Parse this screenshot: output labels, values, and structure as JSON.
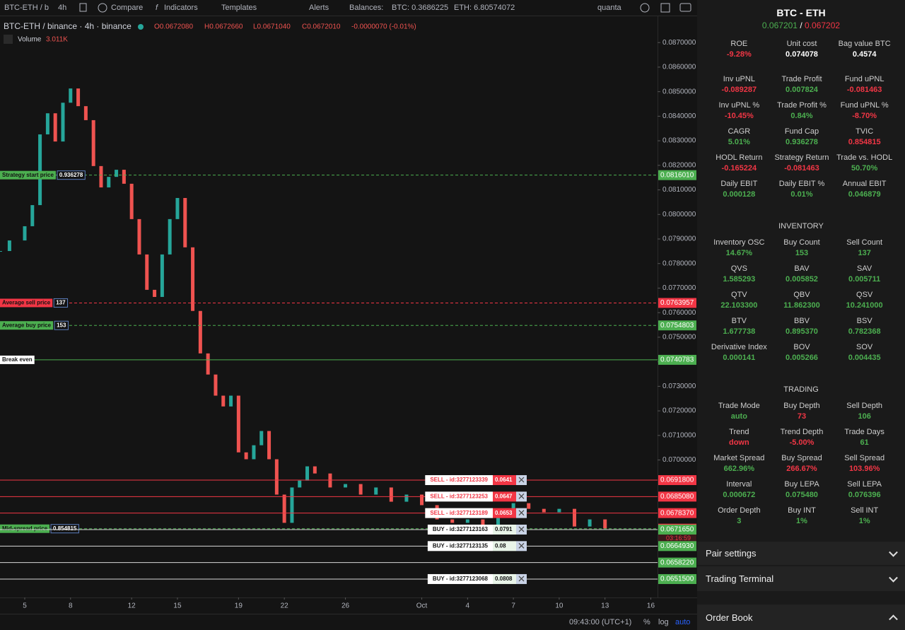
{
  "toolbar": {
    "symbol": "BTC-ETH / b",
    "interval": "4h",
    "compare": "Compare",
    "indicators": "Indicators",
    "templates": "Templates",
    "alerts": "Alerts",
    "balances": "Balances:",
    "btc": "BTC: 0.3686225",
    "eth": "ETH: 6.80574072",
    "user": "quanta"
  },
  "legend": {
    "title": "BTC-ETH / binance · 4h · binance",
    "open": "O0.0672080",
    "high": "H0.0672660",
    "low": "L0.0671040",
    "close": "C0.0672010",
    "change": "-0.0000070 (-0.01%)",
    "volume_label": "Volume",
    "volume": "3.011K"
  },
  "chart_data": {
    "type": "candlestick",
    "up_color": "#26a69a",
    "down_color": "#ef5350",
    "grid": false,
    "x": [
      -1.6,
      -1,
      0,
      0.5,
      1,
      1.5,
      2,
      2.5,
      3,
      3.5,
      4,
      4.5,
      5,
      5.5,
      6,
      6.5,
      7,
      7.5,
      8,
      8.5,
      9,
      9.5,
      10,
      10.5,
      11,
      11.5,
      12,
      12.5,
      13,
      13.5,
      14,
      14.5,
      15,
      15.5,
      16,
      16.5,
      17,
      17.5,
      18,
      18.5,
      19,
      20,
      21,
      22,
      23,
      24,
      25,
      26,
      27,
      28,
      29,
      30,
      31,
      32,
      33,
      34,
      35,
      36,
      37,
      38
    ],
    "values": [
      0.07851,
      0.07894,
      0.07952,
      0.08038,
      0.08326,
      0.08412,
      0.08297,
      0.08455,
      0.08513,
      0.08441,
      0.08384,
      0.08197,
      0.0811,
      0.08153,
      0.08182,
      0.08125,
      0.07981,
      0.07837,
      0.07693,
      0.07664,
      0.07837,
      0.07981,
      0.08067,
      0.07866,
      0.07607,
      0.07434,
      0.07348,
      0.07262,
      0.07218,
      0.07262,
      0.07031,
      0.07003,
      0.0706,
      0.07118,
      0.07003,
      0.06859,
      0.06744,
      0.06888,
      0.06916,
      0.06974,
      0.06945,
      0.06888,
      0.06902,
      0.06859,
      0.06888,
      0.0683,
      0.06859,
      0.06816,
      0.06758,
      0.06744,
      0.06758,
      0.06729,
      0.06801,
      0.06824,
      0.06801,
      0.06787,
      0.06801,
      0.06729,
      0.06758,
      0.06721
    ],
    "xlim": [
      -1.62,
      41.44
    ],
    "ylim": [
      0.0644,
      0.0881
    ],
    "xticks": [
      {
        "value": 0,
        "label": "5"
      },
      {
        "value": 3,
        "label": "8"
      },
      {
        "value": 7,
        "label": "12"
      },
      {
        "value": 10,
        "label": "15"
      },
      {
        "value": 14,
        "label": "19"
      },
      {
        "value": 17,
        "label": "22"
      },
      {
        "value": 21,
        "label": "26"
      },
      {
        "value": 26,
        "label": "Oct"
      },
      {
        "value": 29,
        "label": "4"
      },
      {
        "value": 32,
        "label": "7"
      },
      {
        "value": 35,
        "label": "10"
      },
      {
        "value": 38,
        "label": "13"
      },
      {
        "value": 41,
        "label": "16"
      }
    ],
    "yticks": [
      {
        "value": 0.087,
        "label": "0.0870000"
      },
      {
        "value": 0.086,
        "label": "0.0860000"
      },
      {
        "value": 0.085,
        "label": "0.0850000"
      },
      {
        "value": 0.084,
        "label": "0.0840000"
      },
      {
        "value": 0.083,
        "label": "0.0830000"
      },
      {
        "value": 0.082,
        "label": "0.0820000"
      },
      {
        "value": 0.081,
        "label": "0.0810000"
      },
      {
        "value": 0.08,
        "label": "0.0800000"
      },
      {
        "value": 0.079,
        "label": "0.0790000"
      },
      {
        "value": 0.078,
        "label": "0.0780000"
      },
      {
        "value": 0.077,
        "label": "0.0770000"
      },
      {
        "value": 0.076,
        "label": "0.0760000"
      },
      {
        "value": 0.075,
        "label": "0.0750000"
      },
      {
        "value": 0.074,
        "label": "0.0740000"
      },
      {
        "value": 0.073,
        "label": "0.0730000"
      },
      {
        "value": 0.072,
        "label": "0.0720000"
      },
      {
        "value": 0.071,
        "label": "0.0710000"
      },
      {
        "value": 0.07,
        "label": "0.0700000"
      }
    ],
    "price_lines": [
      {
        "name": "Strategy start price",
        "info": "0.936278",
        "price": {
          "value": 0.081601,
          "label": "0.0816010"
        },
        "color": "#4caf50",
        "dash": true
      },
      {
        "name": "Average sell price",
        "info": "137",
        "price": {
          "value": 0.0763957,
          "label": "0.0763957"
        },
        "color": "#f23645",
        "dash": true
      },
      {
        "name": "Average buy price",
        "info": "153",
        "price": {
          "value": 0.0754803,
          "label": "0.0754803"
        },
        "color": "#4caf50",
        "dash": true
      },
      {
        "name": "Break even",
        "info": null,
        "price": {
          "value": 0.0740783,
          "label": "0.0740783"
        },
        "color": "#4caf50",
        "tag_color": "#ffffff",
        "dash": false
      },
      {
        "name": "Mid-spread price",
        "info": "0.854815",
        "price": {
          "value": 0.067201,
          "label": "0.0672010"
        },
        "color": "#4caf50",
        "axis_color": "#f23645",
        "dash": true,
        "countdown": "03:16:59"
      }
    ],
    "orders": [
      {
        "name": "SELL - id:3277123339",
        "info": "0.0641",
        "price": {
          "value": 0.06918,
          "label": "0.0691800"
        },
        "line_color": "#f23645",
        "tag_color": "#f23645",
        "label_color": "#f23645"
      },
      {
        "name": "SELL - id:3277123253",
        "info": "0.0647",
        "price": {
          "value": 0.068508,
          "label": "0.0685080"
        },
        "line_color": "#f23645",
        "tag_color": "#f23645",
        "label_color": "#f23645"
      },
      {
        "name": "SELL - id:3277123189",
        "info": "0.0653",
        "price": {
          "value": 0.067837,
          "label": "0.0678370"
        },
        "line_color": "#f23645",
        "tag_color": "#f23645",
        "label_color": "#f23645"
      },
      {
        "name": "BUY - id:3277123163",
        "info": "0.0791",
        "price": {
          "value": 0.067165,
          "label": "0.0671650"
        },
        "line_color": "#d8d8d8",
        "tag_color": "#4caf50",
        "label_color": "#131313"
      },
      {
        "name": "BUY - id:3277123135",
        "info": "0.08",
        "price": {
          "value": 0.066493,
          "label": "0.0664930"
        },
        "line_color": "#d8d8d8",
        "tag_color": "#4caf50",
        "label_color": "#131313"
      },
      {
        "name": null,
        "info": null,
        "price": {
          "value": 0.065822,
          "label": "0.0658220"
        },
        "line_color": "#d8d8d8",
        "tag_color": "#4caf50",
        "label_color": "#131313"
      },
      {
        "name": "BUY - id:3277123068",
        "info": "0.0808",
        "price": {
          "value": 0.06515,
          "label": "0.0651500"
        },
        "line_color": "#d8d8d8",
        "tag_color": "#4caf50",
        "label_color": "#131313"
      }
    ]
  },
  "footer": {
    "time": "09:43:00 (UTC+1)",
    "percent": "%",
    "log": "log",
    "auto": "auto"
  },
  "panel": {
    "title": "BTC - ETH",
    "bid": "0.067201",
    "sep": "/",
    "ask": "0.067202",
    "stats": [
      {
        "label": "ROE",
        "value": "-9.28%",
        "color": "red"
      },
      {
        "label": "Unit cost",
        "value": "0.074078",
        "color": "white"
      },
      {
        "label": "Bag value BTC",
        "value": "0.4574",
        "color": "white"
      },
      {
        "label": "Inv uPNL",
        "value": "-0.089287",
        "color": "red"
      },
      {
        "label": "Trade Profit",
        "value": "0.007824",
        "color": "green"
      },
      {
        "label": "Fund uPNL",
        "value": "-0.081463",
        "color": "red"
      },
      {
        "label": "Inv uPNL %",
        "value": "-10.45%",
        "color": "red"
      },
      {
        "label": "Trade Profit %",
        "value": "0.84%",
        "color": "green"
      },
      {
        "label": "Fund uPNL %",
        "value": "-8.70%",
        "color": "red"
      },
      {
        "label": "CAGR",
        "value": "5.01%",
        "color": "green"
      },
      {
        "label": "Fund Cap",
        "value": "0.936278",
        "color": "green"
      },
      {
        "label": "TVIC",
        "value": "0.854815",
        "color": "red"
      },
      {
        "label": "HODL Return",
        "value": "-0.165224",
        "color": "red"
      },
      {
        "label": "Strategy Return",
        "value": "-0.081463",
        "color": "red"
      },
      {
        "label": "Trade vs. HODL",
        "value": "50.70%",
        "color": "green"
      },
      {
        "label": "Daily EBIT",
        "value": "0.000128",
        "color": "green"
      },
      {
        "label": "Daily EBIT %",
        "value": "0.01%",
        "color": "green"
      },
      {
        "label": "Annual EBIT",
        "value": "0.046879",
        "color": "green"
      }
    ],
    "inventory_title": "INVENTORY",
    "inventory": [
      {
        "label": "Inventory OSC",
        "value": "14.67%",
        "color": "green"
      },
      {
        "label": "Buy Count",
        "value": "153",
        "color": "green"
      },
      {
        "label": "Sell Count",
        "value": "137",
        "color": "green"
      },
      {
        "label": "QVS",
        "value": "1.585293",
        "color": "green"
      },
      {
        "label": "BAV",
        "value": "0.005852",
        "color": "green"
      },
      {
        "label": "SAV",
        "value": "0.005711",
        "color": "green"
      },
      {
        "label": "QTV",
        "value": "22.103300",
        "color": "green"
      },
      {
        "label": "QBV",
        "value": "11.862300",
        "color": "green"
      },
      {
        "label": "QSV",
        "value": "10.241000",
        "color": "green"
      },
      {
        "label": "BTV",
        "value": "1.677738",
        "color": "green"
      },
      {
        "label": "BBV",
        "value": "0.895370",
        "color": "green"
      },
      {
        "label": "BSV",
        "value": "0.782368",
        "color": "green"
      },
      {
        "label": "Derivative Index",
        "value": "0.000141",
        "color": "green"
      },
      {
        "label": "BOV",
        "value": "0.005266",
        "color": "green"
      },
      {
        "label": "SOV",
        "value": "0.004435",
        "color": "green"
      }
    ],
    "trading_title": "TRADING",
    "trading": [
      {
        "label": "Trade Mode",
        "value": "auto",
        "color": "green"
      },
      {
        "label": "Buy Depth",
        "value": "73",
        "color": "red"
      },
      {
        "label": "Sell Depth",
        "value": "106",
        "color": "green"
      },
      {
        "label": "Trend",
        "value": "down",
        "color": "red"
      },
      {
        "label": "Trend Depth",
        "value": "-5.00%",
        "color": "red"
      },
      {
        "label": "Trade Days",
        "value": "61",
        "color": "green"
      },
      {
        "label": "Market Spread",
        "value": "662.96%",
        "color": "green"
      },
      {
        "label": "Buy Spread",
        "value": "266.67%",
        "color": "red"
      },
      {
        "label": "Sell Spread",
        "value": "103.96%",
        "color": "red"
      },
      {
        "label": "Interval",
        "value": "0.000672",
        "color": "green"
      },
      {
        "label": "Buy LEPA",
        "value": "0.075480",
        "color": "green"
      },
      {
        "label": "Sell LEPA",
        "value": "0.076396",
        "color": "green"
      },
      {
        "label": "Order Depth",
        "value": "3",
        "color": "green"
      },
      {
        "label": "Buy INT",
        "value": "1%",
        "color": "green"
      },
      {
        "label": "Sell INT",
        "value": "1%",
        "color": "green"
      }
    ],
    "sections": [
      "Pair settings",
      "Trading Terminal",
      "Order Book"
    ]
  }
}
